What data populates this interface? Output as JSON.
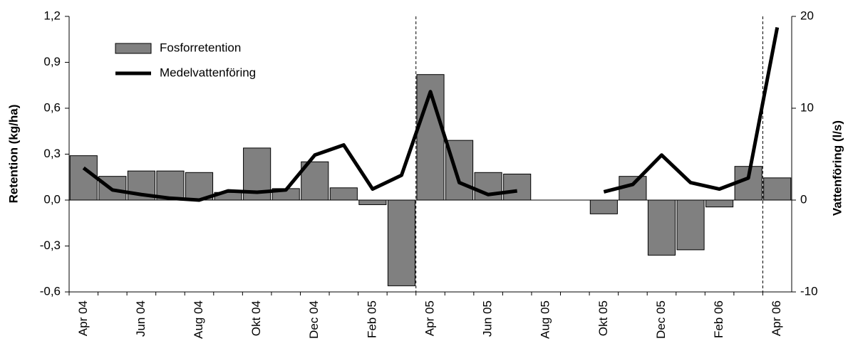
{
  "chart_data": {
    "type": "bar",
    "ylabel": "Retention (kg/ha)",
    "y2label": "Vattenföring (l/s)",
    "categories": [
      "Apr 04",
      null,
      "Jun 04",
      null,
      "Aug 04",
      null,
      "Okt 04",
      null,
      "Dec 04",
      null,
      "Feb 05",
      null,
      "Apr 05",
      null,
      "Jun 05",
      null,
      "Aug 05",
      null,
      "Okt 05",
      null,
      "Dec 05",
      null,
      "Feb 06",
      null,
      "Apr 06"
    ],
    "series": [
      {
        "name": "Fosforretention",
        "type": "bar",
        "color": "#808080",
        "values": [
          0.29,
          0.155,
          0.19,
          0.19,
          0.18,
          0.05,
          0.34,
          0.075,
          0.25,
          0.08,
          -0.03,
          -0.56,
          0.82,
          0.39,
          0.18,
          0.17,
          null,
          null,
          -0.09,
          0.155,
          -0.36,
          -0.325,
          -0.045,
          0.22,
          0.145
        ]
      },
      {
        "name": "Medelvattenföring",
        "type": "line",
        "axis": "y2",
        "color": "#000000",
        "values": [
          3.5,
          1.1,
          0.6,
          0.2,
          0,
          1.0,
          0.85,
          1.1,
          4.9,
          6.0,
          1.2,
          2.7,
          11.8,
          1.9,
          0.6,
          1.0,
          null,
          null,
          0.9,
          1.7,
          4.9,
          1.9,
          1.2,
          2.4,
          18.8
        ]
      }
    ],
    "ylim": [
      -0.6,
      1.2
    ],
    "yticks": [
      {
        "value": -0.6,
        "label": "-0,6"
      },
      {
        "value": -0.3,
        "label": "-0,3"
      },
      {
        "value": 0,
        "label": "0,0"
      },
      {
        "value": 0.3,
        "label": "0,3"
      },
      {
        "value": 0.6,
        "label": "0,6"
      },
      {
        "value": 0.9,
        "label": "0,9"
      },
      {
        "value": 1.2,
        "label": "1,2"
      }
    ],
    "y2lim": [
      -10,
      20
    ],
    "y2ticks": [
      -10,
      0,
      10,
      20
    ],
    "legend": "upper left"
  }
}
